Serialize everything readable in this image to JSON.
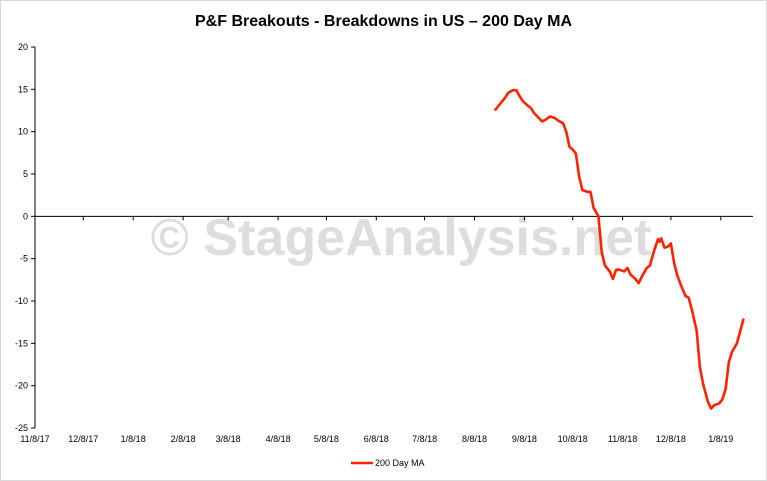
{
  "chart_data": {
    "type": "line",
    "title": "P&F Breakouts - Breakdowns in US – 200 Day MA",
    "xlabel": "",
    "ylabel": "",
    "ylim": [
      -25,
      20
    ],
    "yticks": [
      20,
      15,
      10,
      5,
      0,
      -5,
      -10,
      -15,
      -20,
      -25
    ],
    "xlim": [
      "2017-11-08",
      "2019-01-28"
    ],
    "xtick_labels": [
      "11/8/17",
      "12/8/17",
      "1/8/18",
      "2/8/18",
      "3/8/18",
      "4/8/18",
      "5/8/18",
      "6/8/18",
      "7/8/18",
      "8/8/18",
      "9/8/18",
      "10/8/18",
      "11/8/18",
      "12/8/18",
      "1/8/19"
    ],
    "xtick_dates": [
      "2017-11-08",
      "2017-12-08",
      "2018-01-08",
      "2018-02-08",
      "2018-03-08",
      "2018-04-08",
      "2018-05-08",
      "2018-06-08",
      "2018-07-08",
      "2018-08-08",
      "2018-09-08",
      "2018-10-08",
      "2018-11-08",
      "2018-12-08",
      "2019-01-08"
    ],
    "grid": false,
    "legend": "bottom",
    "watermark": "© StageAnalysis.net",
    "series": [
      {
        "name": "200 Day MA",
        "color": "#ff2200",
        "points": [
          [
            "2018-08-21",
            12.6
          ],
          [
            "2018-08-24",
            13.3
          ],
          [
            "2018-08-27",
            14.0
          ],
          [
            "2018-08-29",
            14.6
          ],
          [
            "2018-09-01",
            14.9
          ],
          [
            "2018-09-03",
            14.9
          ],
          [
            "2018-09-05",
            14.2
          ],
          [
            "2018-09-07",
            13.6
          ],
          [
            "2018-09-10",
            13.1
          ],
          [
            "2018-09-12",
            12.8
          ],
          [
            "2018-09-14",
            12.2
          ],
          [
            "2018-09-17",
            11.6
          ],
          [
            "2018-09-19",
            11.2
          ],
          [
            "2018-09-21",
            11.4
          ],
          [
            "2018-09-24",
            11.8
          ],
          [
            "2018-09-27",
            11.6
          ],
          [
            "2018-09-29",
            11.3
          ],
          [
            "2018-10-02",
            11.0
          ],
          [
            "2018-10-04",
            10.0
          ],
          [
            "2018-10-06",
            8.2
          ],
          [
            "2018-10-08",
            7.9
          ],
          [
            "2018-10-10",
            7.4
          ],
          [
            "2018-10-12",
            4.7
          ],
          [
            "2018-10-14",
            3.1
          ],
          [
            "2018-10-17",
            2.9
          ],
          [
            "2018-10-19",
            2.9
          ],
          [
            "2018-10-21",
            1.0
          ],
          [
            "2018-10-24",
            0.0
          ],
          [
            "2018-10-26",
            -4.2
          ],
          [
            "2018-10-28",
            -5.8
          ],
          [
            "2018-10-31",
            -6.5
          ],
          [
            "2018-11-02",
            -7.4
          ],
          [
            "2018-11-04",
            -6.3
          ],
          [
            "2018-11-06",
            -6.3
          ],
          [
            "2018-11-09",
            -6.5
          ],
          [
            "2018-11-11",
            -6.1
          ],
          [
            "2018-11-13",
            -6.9
          ],
          [
            "2018-11-16",
            -7.4
          ],
          [
            "2018-11-18",
            -7.9
          ],
          [
            "2018-11-20",
            -7.1
          ],
          [
            "2018-11-23",
            -6.1
          ],
          [
            "2018-11-25",
            -5.8
          ],
          [
            "2018-11-27",
            -4.4
          ],
          [
            "2018-11-30",
            -2.7
          ],
          [
            "2018-12-01",
            -3.0
          ],
          [
            "2018-12-02",
            -2.6
          ],
          [
            "2018-12-04",
            -3.7
          ],
          [
            "2018-12-06",
            -3.6
          ],
          [
            "2018-12-08",
            -3.2
          ],
          [
            "2018-12-10",
            -5.5
          ],
          [
            "2018-12-12",
            -7.0
          ],
          [
            "2018-12-14",
            -8.0
          ],
          [
            "2018-12-17",
            -9.4
          ],
          [
            "2018-12-19",
            -9.6
          ],
          [
            "2018-12-21",
            -11.0
          ],
          [
            "2018-12-24",
            -13.5
          ],
          [
            "2018-12-26",
            -17.8
          ],
          [
            "2018-12-28",
            -19.8
          ],
          [
            "2018-12-31",
            -21.9
          ],
          [
            "2019-01-02",
            -22.7
          ],
          [
            "2019-01-04",
            -22.3
          ],
          [
            "2019-01-07",
            -22.1
          ],
          [
            "2019-01-09",
            -21.6
          ],
          [
            "2019-01-11",
            -20.4
          ],
          [
            "2019-01-13",
            -17.2
          ],
          [
            "2019-01-15",
            -16.0
          ],
          [
            "2019-01-18",
            -15.0
          ],
          [
            "2019-01-20",
            -13.6
          ],
          [
            "2019-01-22",
            -12.2
          ]
        ]
      }
    ]
  }
}
